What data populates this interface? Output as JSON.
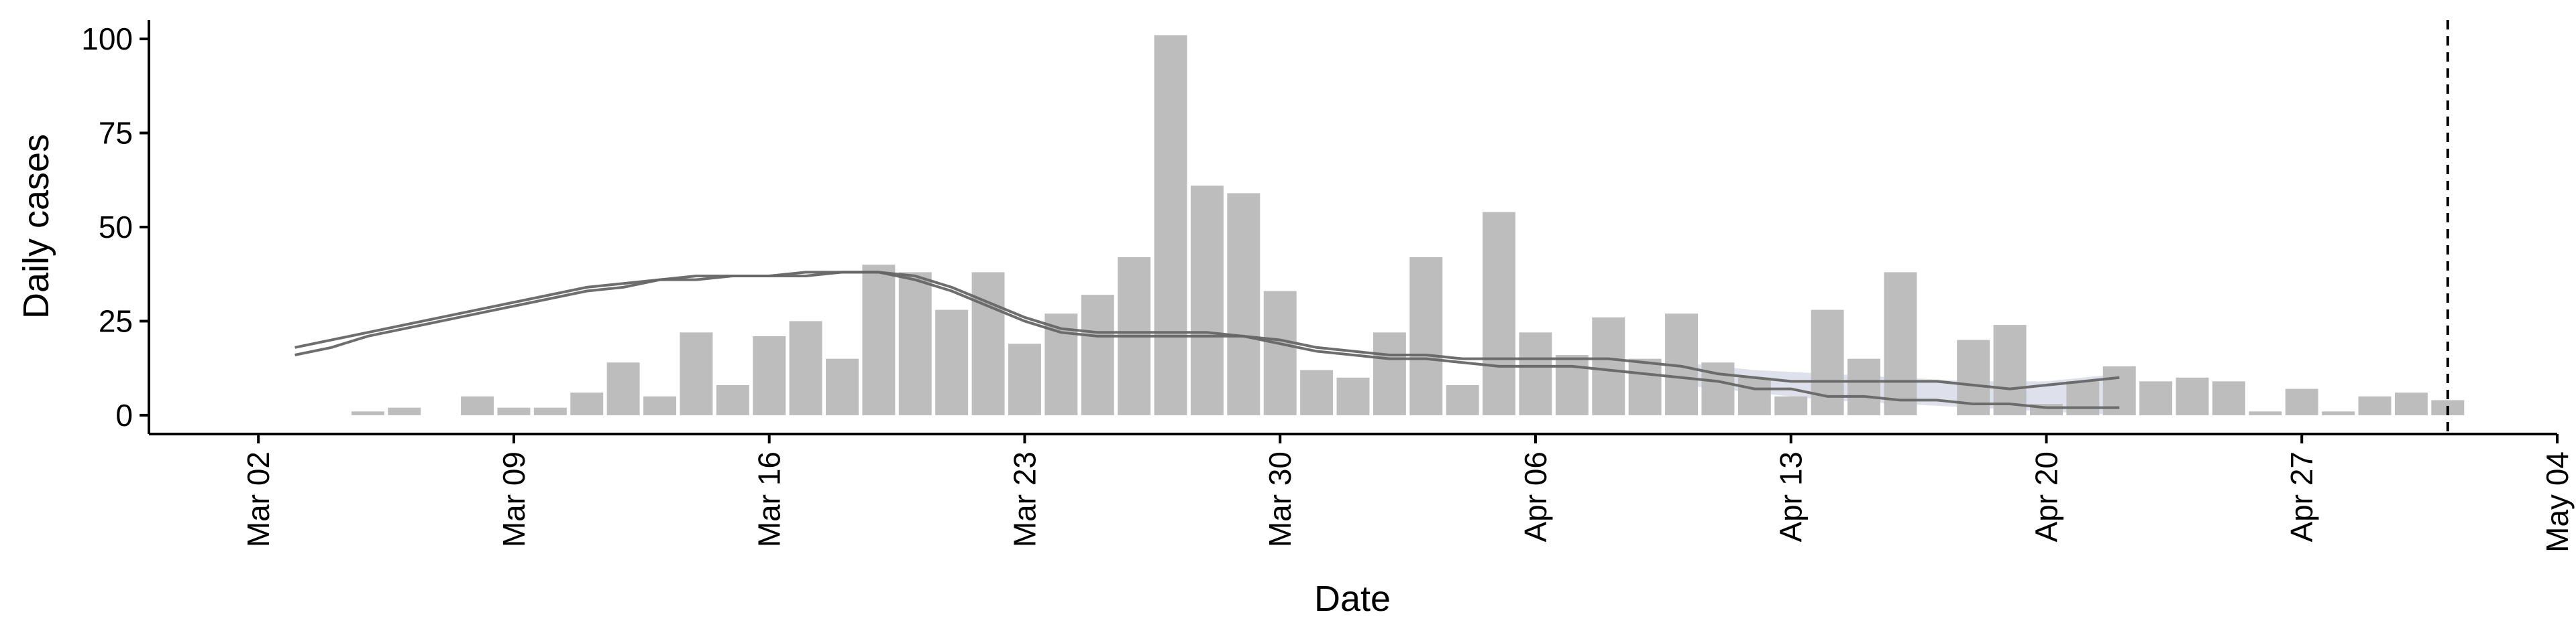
{
  "chart_data": {
    "type": "bar",
    "xlabel": "Date",
    "ylabel": "Daily cases",
    "ylim": [
      -5,
      105
    ],
    "y_ticks": [
      0,
      25,
      50,
      75,
      100
    ],
    "x_range": [
      "2020-02-28",
      "2020-05-04"
    ],
    "x_ticks": [
      {
        "date": "2020-03-02",
        "label": "Mar 02"
      },
      {
        "date": "2020-03-09",
        "label": "Mar 09"
      },
      {
        "date": "2020-03-16",
        "label": "Mar 16"
      },
      {
        "date": "2020-03-23",
        "label": "Mar 23"
      },
      {
        "date": "2020-03-30",
        "label": "Mar 30"
      },
      {
        "date": "2020-04-06",
        "label": "Apr 06"
      },
      {
        "date": "2020-04-13",
        "label": "Apr 13"
      },
      {
        "date": "2020-04-20",
        "label": "Apr 20"
      },
      {
        "date": "2020-04-27",
        "label": "Apr 27"
      },
      {
        "date": "2020-05-04",
        "label": "May 04"
      }
    ],
    "grid": false,
    "vline_date": "2020-05-01",
    "colors": {
      "bars": "#bdbdbd",
      "lines": "#666666",
      "band": "#c8cde0",
      "vline": "#000000"
    },
    "bars": {
      "dates": [
        "2020-03-05",
        "2020-03-06",
        "2020-03-07",
        "2020-03-08",
        "2020-03-09",
        "2020-03-10",
        "2020-03-11",
        "2020-03-12",
        "2020-03-13",
        "2020-03-14",
        "2020-03-15",
        "2020-03-16",
        "2020-03-17",
        "2020-03-18",
        "2020-03-19",
        "2020-03-20",
        "2020-03-21",
        "2020-03-22",
        "2020-03-23",
        "2020-03-24",
        "2020-03-25",
        "2020-03-26",
        "2020-03-27",
        "2020-03-28",
        "2020-03-29",
        "2020-03-30",
        "2020-03-31",
        "2020-04-01",
        "2020-04-02",
        "2020-04-03",
        "2020-04-04",
        "2020-04-05",
        "2020-04-06",
        "2020-04-07",
        "2020-04-08",
        "2020-04-09",
        "2020-04-10",
        "2020-04-11",
        "2020-04-12",
        "2020-04-13",
        "2020-04-14",
        "2020-04-15",
        "2020-04-16",
        "2020-04-17",
        "2020-04-18",
        "2020-04-19",
        "2020-04-20",
        "2020-04-21",
        "2020-04-22",
        "2020-04-23",
        "2020-04-24",
        "2020-04-25",
        "2020-04-26",
        "2020-04-27",
        "2020-04-28",
        "2020-04-29",
        "2020-04-30",
        "2020-05-01"
      ],
      "values": [
        1,
        2,
        0,
        5,
        2,
        2,
        6,
        14,
        5,
        22,
        8,
        21,
        25,
        15,
        40,
        38,
        28,
        38,
        19,
        27,
        32,
        42,
        101,
        61,
        59,
        33,
        12,
        10,
        22,
        42,
        8,
        54,
        22,
        16,
        26,
        15,
        27,
        14,
        10,
        5,
        28,
        15,
        38,
        0,
        20,
        24,
        3,
        9,
        13,
        9,
        10,
        9,
        1,
        7,
        1,
        5,
        6,
        4
      ]
    },
    "series": [
      {
        "dates": [
          "2020-03-03",
          "2020-03-04",
          "2020-03-05",
          "2020-03-06",
          "2020-03-07",
          "2020-03-08",
          "2020-03-09",
          "2020-03-10",
          "2020-03-11",
          "2020-03-12",
          "2020-03-13",
          "2020-03-14",
          "2020-03-15",
          "2020-03-16",
          "2020-03-17",
          "2020-03-18",
          "2020-03-19",
          "2020-03-20",
          "2020-03-21",
          "2020-03-22",
          "2020-03-23",
          "2020-03-24",
          "2020-03-25",
          "2020-03-26",
          "2020-03-27",
          "2020-03-28",
          "2020-03-29",
          "2020-03-30",
          "2020-03-31",
          "2020-04-01",
          "2020-04-02",
          "2020-04-03",
          "2020-04-04",
          "2020-04-05",
          "2020-04-06",
          "2020-04-07",
          "2020-04-08",
          "2020-04-09",
          "2020-04-10",
          "2020-04-11",
          "2020-04-12",
          "2020-04-13",
          "2020-04-14",
          "2020-04-15",
          "2020-04-16",
          "2020-04-17",
          "2020-04-18",
          "2020-04-19",
          "2020-04-20",
          "2020-04-21",
          "2020-04-22"
        ],
        "values": [
          18,
          20,
          22,
          24,
          26,
          28,
          30,
          32,
          34,
          35,
          36,
          37,
          37,
          37,
          37,
          38,
          38,
          37,
          34,
          30,
          26,
          23,
          22,
          22,
          22,
          22,
          21,
          20,
          18,
          17,
          16,
          16,
          15,
          15,
          15,
          15,
          15,
          14,
          13,
          11,
          10,
          9,
          9,
          9,
          9,
          9,
          8,
          7,
          8,
          9,
          10
        ]
      },
      {
        "dates": [
          "2020-03-03",
          "2020-03-04",
          "2020-03-05",
          "2020-03-06",
          "2020-03-07",
          "2020-03-08",
          "2020-03-09",
          "2020-03-10",
          "2020-03-11",
          "2020-03-12",
          "2020-03-13",
          "2020-03-14",
          "2020-03-15",
          "2020-03-16",
          "2020-03-17",
          "2020-03-18",
          "2020-03-19",
          "2020-03-20",
          "2020-03-21",
          "2020-03-22",
          "2020-03-23",
          "2020-03-24",
          "2020-03-25",
          "2020-03-26",
          "2020-03-27",
          "2020-03-28",
          "2020-03-29",
          "2020-03-30",
          "2020-03-31",
          "2020-04-01",
          "2020-04-02",
          "2020-04-03",
          "2020-04-04",
          "2020-04-05",
          "2020-04-06",
          "2020-04-07",
          "2020-04-08",
          "2020-04-09",
          "2020-04-10",
          "2020-04-11",
          "2020-04-12",
          "2020-04-13",
          "2020-04-14",
          "2020-04-15",
          "2020-04-16",
          "2020-04-17",
          "2020-04-18",
          "2020-04-19",
          "2020-04-20",
          "2020-04-21",
          "2020-04-22"
        ],
        "values": [
          16,
          18,
          21,
          23,
          25,
          27,
          29,
          31,
          33,
          34,
          36,
          36,
          37,
          37,
          38,
          38,
          38,
          36,
          33,
          29,
          25,
          22,
          21,
          21,
          21,
          21,
          21,
          19,
          17,
          16,
          15,
          15,
          14,
          13,
          13,
          13,
          12,
          11,
          10,
          9,
          7,
          7,
          5,
          5,
          4,
          4,
          3,
          3,
          2,
          2,
          2
        ]
      }
    ],
    "band": {
      "dates": [
        "2020-04-10",
        "2020-04-12",
        "2020-04-14",
        "2020-04-16",
        "2020-04-18",
        "2020-04-20",
        "2020-04-22"
      ],
      "lower": [
        8,
        6,
        4,
        3,
        2,
        1,
        0
      ],
      "upper": [
        14,
        12,
        11,
        10,
        9,
        9,
        11
      ]
    }
  }
}
